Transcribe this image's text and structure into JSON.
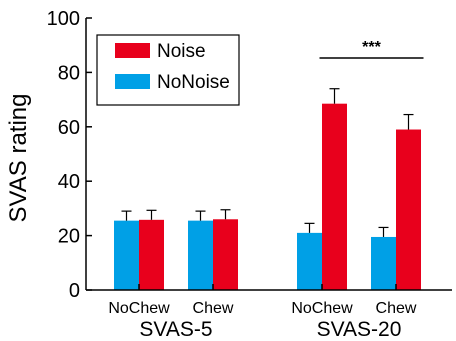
{
  "chart_data": {
    "type": "bar",
    "ylabel": "SVAS rating",
    "ylim": [
      0,
      100
    ],
    "yticks": [
      0,
      20,
      40,
      60,
      80,
      100
    ],
    "grid": false,
    "legend_position": "top-left",
    "groups": [
      {
        "label": "SVAS-5",
        "categories": [
          "NoChew",
          "Chew"
        ]
      },
      {
        "label": "SVAS-20",
        "categories": [
          "NoChew",
          "Chew"
        ]
      }
    ],
    "categories": [
      "NoChew",
      "Chew",
      "NoChew",
      "Chew"
    ],
    "series": [
      {
        "name": "NoNoise",
        "color": "#00a0e6",
        "values": [
          25.5,
          25.5,
          21,
          19.5
        ],
        "errors": [
          3.5,
          3.5,
          3.5,
          3.5
        ]
      },
      {
        "name": "Noise",
        "color": "#e8001c",
        "values": [
          25.8,
          26,
          68.5,
          59
        ],
        "errors": [
          3.5,
          3.5,
          5.5,
          5.5
        ]
      }
    ],
    "legend_order": [
      "Noise",
      "NoNoise"
    ],
    "annotations": [
      {
        "text": "***",
        "between": "SVAS-20 NoChew and Chew Noise bars"
      }
    ]
  }
}
